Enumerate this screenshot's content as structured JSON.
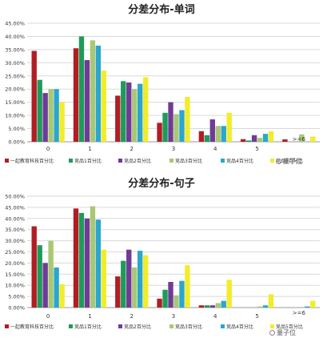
{
  "chart_data": [
    {
      "type": "bar",
      "title": "分差分布-单词",
      "categories": [
        "0",
        "1",
        "2",
        "3",
        "4",
        "5",
        ">=6"
      ],
      "ylim": [
        0,
        45
      ],
      "y_ticks": [
        "0.00%",
        "5.00%",
        "10.00%",
        "15.00%",
        "20.00%",
        "25.00%",
        "30.00%",
        "35.00%",
        "40.00%",
        "45.00%"
      ],
      "grid": true,
      "legend_position": "bottom",
      "series": [
        {
          "name": "一起教育科技百分比",
          "color": "#b01e23",
          "values": [
            34.5,
            35.5,
            17.5,
            7.2,
            4.0,
            1.0,
            0.9
          ]
        },
        {
          "name": "竞品1百分比",
          "color": "#1f9a5a",
          "values": [
            23.5,
            40.0,
            23.0,
            11.0,
            2.5,
            0.5,
            0.0
          ]
        },
        {
          "name": "竞品2百分比",
          "color": "#6f3b96",
          "values": [
            18.5,
            31.0,
            22.5,
            15.0,
            8.5,
            2.5,
            0.0
          ]
        },
        {
          "name": "竞品3百分比",
          "color": "#a8c874",
          "values": [
            20.0,
            38.5,
            20.0,
            10.5,
            6.0,
            1.5,
            2.8
          ]
        },
        {
          "name": "竞品4百分比",
          "color": "#2aa6cf",
          "values": [
            20.0,
            36.5,
            22.0,
            12.0,
            6.0,
            3.0,
            0.0
          ]
        },
        {
          "name": "竞品5百分比",
          "color": "#f2ec2a",
          "values": [
            15.0,
            27.0,
            24.5,
            17.0,
            11.0,
            4.0,
            2.0
          ]
        }
      ],
      "watermark": "量子位"
    },
    {
      "type": "bar",
      "title": "分差分布-句子",
      "categories": [
        "0",
        "1",
        "2",
        "3",
        "4",
        "5",
        ">=6"
      ],
      "ylim": [
        0,
        50
      ],
      "y_ticks": [
        "0.00%",
        "5.00%",
        "10.00%",
        "15.00%",
        "20.00%",
        "25.00%",
        "30.00%",
        "35.00%",
        "40.00%",
        "45.00%",
        "50.00%"
      ],
      "grid": true,
      "legend_position": "bottom",
      "series": [
        {
          "name": "一起教育科技百分比",
          "color": "#b01e23",
          "values": [
            36.5,
            44.5,
            14.0,
            4.0,
            1.0,
            0.0,
            0.0
          ]
        },
        {
          "name": "竞品1百分比",
          "color": "#1f9a5a",
          "values": [
            28.0,
            42.5,
            21.0,
            8.0,
            1.0,
            0.0,
            0.0
          ]
        },
        {
          "name": "竞品2百分比",
          "color": "#6f3b96",
          "values": [
            20.0,
            40.0,
            26.0,
            11.5,
            1.0,
            0.0,
            0.0
          ]
        },
        {
          "name": "竞品3百分比",
          "color": "#a8c874",
          "values": [
            30.0,
            45.5,
            18.0,
            5.5,
            2.0,
            0.5,
            0.0
          ]
        },
        {
          "name": "竞品4百分比",
          "color": "#2aa6cf",
          "values": [
            18.0,
            39.5,
            25.5,
            12.0,
            3.0,
            1.0,
            0.5
          ]
        },
        {
          "name": "竞品5百分比",
          "color": "#f2ec2a",
          "values": [
            10.5,
            26.0,
            23.5,
            19.0,
            12.5,
            6.0,
            3.0
          ]
        }
      ],
      "watermark": "量子位"
    }
  ]
}
